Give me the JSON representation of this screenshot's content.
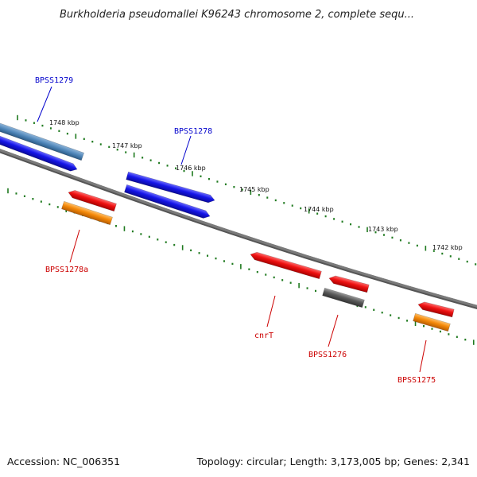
{
  "title": "Burkholderia pseudomallei K96243 chromosome 2, complete sequ...",
  "footer": {
    "accession": "Accession: NC_006351",
    "topology": "Topology: circular; Length: 3,173,005 bp; Genes: 2,341"
  },
  "colors": {
    "backbone": "#7a7a7a",
    "ticks": "#1f7a1f",
    "forward_label": "#0000cc",
    "reverse_label": "#cc0000",
    "blue": "#1515e8",
    "steel_blue": "#4f86b9",
    "red": "#ee1111",
    "orange": "#f58a0a",
    "gray": "#5a5a5a"
  },
  "ruler": {
    "unit": "kbp",
    "labels": [
      "1748 kbp",
      "1747 kbp",
      "1746 kbp",
      "1745 kbp",
      "1744 kbp",
      "1743 kbp",
      "1742 kbp"
    ]
  },
  "genes": [
    {
      "id": "steelblue-forward-gene",
      "strand": "forward",
      "color": "steel_blue",
      "label": ""
    },
    {
      "id": "BPSS1279",
      "strand": "forward",
      "color": "blue",
      "label": "BPSS1279"
    },
    {
      "id": "BPSS1278-a",
      "strand": "forward",
      "color": "blue",
      "label": "BPSS1278"
    },
    {
      "id": "BPSS1278-b",
      "strand": "forward",
      "color": "blue",
      "label": ""
    },
    {
      "id": "BPSS1278a-red",
      "strand": "reverse",
      "color": "red",
      "label": ""
    },
    {
      "id": "BPSS1278a",
      "strand": "reverse",
      "color": "orange",
      "label": "BPSS1278a"
    },
    {
      "id": "cnrT",
      "strand": "reverse",
      "color": "red",
      "label": "cnrT"
    },
    {
      "id": "BPSS1276-red",
      "strand": "reverse",
      "color": "red",
      "label": ""
    },
    {
      "id": "BPSS1276",
      "strand": "reverse",
      "color": "gray",
      "label": "BPSS1276"
    },
    {
      "id": "BPSS1275-red",
      "strand": "reverse",
      "color": "red",
      "label": ""
    },
    {
      "id": "BPSS1275",
      "strand": "reverse",
      "color": "orange",
      "label": "BPSS1275"
    }
  ]
}
